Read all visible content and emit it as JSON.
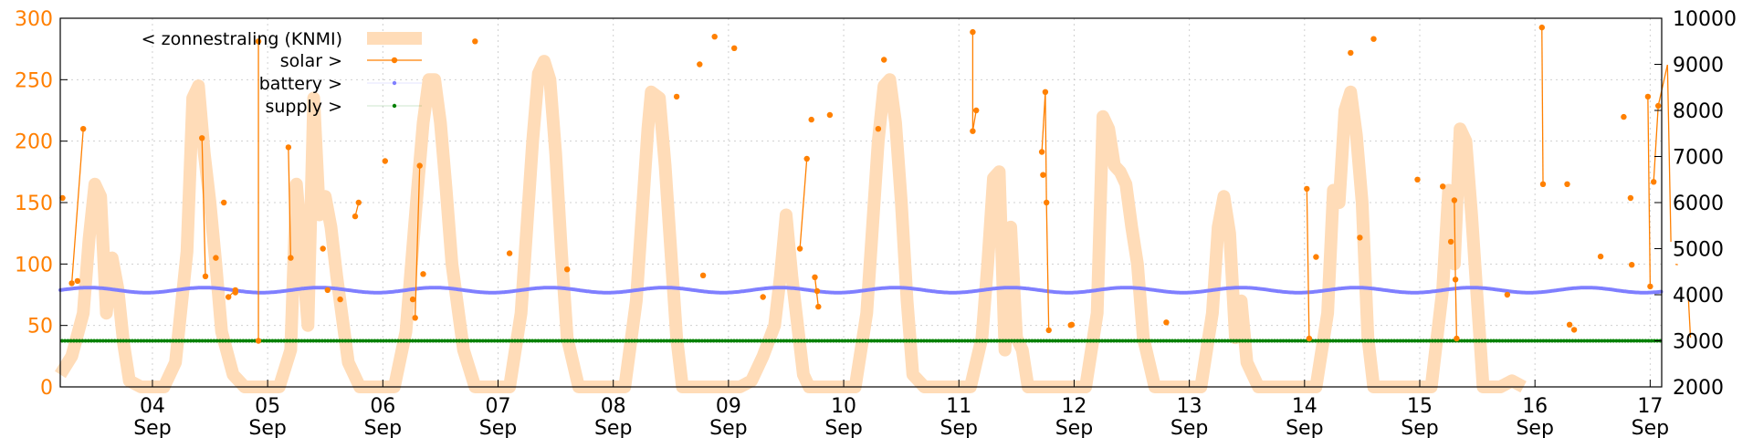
{
  "chart_data": {
    "type": "line",
    "title": "",
    "xlabel": "",
    "ylabel": "",
    "colors": {
      "zonnestraling": "#ffdcb8",
      "solar": "#ff8000",
      "battery": "#7f7fff",
      "supply": "#008000",
      "left_axis": "#ff7f00",
      "right_axis": "#000000"
    },
    "x_days": [
      "04",
      "05",
      "06",
      "07",
      "08",
      "09",
      "10",
      "11",
      "12",
      "13",
      "14",
      "15",
      "16",
      "17"
    ],
    "x_month": "Sep",
    "xlim": [
      3.2,
      17.1
    ],
    "ylim_left": [
      0,
      300
    ],
    "ylim_right": [
      2000,
      10000
    ],
    "y_ticks_left": [
      "0",
      "50",
      "100",
      "150",
      "200",
      "250",
      "300"
    ],
    "y_ticks_right": [
      "2000",
      "3000",
      "4000",
      "5000",
      "6000",
      "7000",
      "8000",
      "9000",
      "10000"
    ],
    "grid": true,
    "legend_position": "top-left",
    "legend": [
      {
        "key": "zonnestraling",
        "label": "< zonnestraling (KNMI)"
      },
      {
        "key": "solar",
        "label": "solar >"
      },
      {
        "key": "battery",
        "label": "battery >"
      },
      {
        "key": "supply",
        "label": "supply >"
      }
    ],
    "series": [
      {
        "name": "< zonnestraling (KNMI)",
        "axis": "left",
        "style": "thick-line",
        "points": [
          [
            3.2,
            10
          ],
          [
            3.3,
            25
          ],
          [
            3.4,
            60
          ],
          [
            3.45,
            120
          ],
          [
            3.5,
            165
          ],
          [
            3.55,
            155
          ],
          [
            3.6,
            60
          ],
          [
            3.65,
            105
          ],
          [
            3.7,
            80
          ],
          [
            3.75,
            35
          ],
          [
            3.8,
            5
          ],
          [
            3.9,
            0
          ],
          [
            4.1,
            0
          ],
          [
            4.2,
            20
          ],
          [
            4.3,
            110
          ],
          [
            4.35,
            235
          ],
          [
            4.4,
            245
          ],
          [
            4.45,
            190
          ],
          [
            4.5,
            150
          ],
          [
            4.55,
            100
          ],
          [
            4.6,
            45
          ],
          [
            4.7,
            10
          ],
          [
            4.8,
            0
          ],
          [
            5.1,
            0
          ],
          [
            5.2,
            30
          ],
          [
            5.25,
            165
          ],
          [
            5.3,
            110
          ],
          [
            5.35,
            50
          ],
          [
            5.4,
            235
          ],
          [
            5.45,
            140
          ],
          [
            5.5,
            155
          ],
          [
            5.55,
            130
          ],
          [
            5.6,
            90
          ],
          [
            5.7,
            20
          ],
          [
            5.8,
            0
          ],
          [
            6.1,
            0
          ],
          [
            6.2,
            45
          ],
          [
            6.3,
            160
          ],
          [
            6.35,
            215
          ],
          [
            6.4,
            250
          ],
          [
            6.45,
            250
          ],
          [
            6.5,
            215
          ],
          [
            6.55,
            160
          ],
          [
            6.6,
            100
          ],
          [
            6.7,
            30
          ],
          [
            6.8,
            0
          ],
          [
            7.1,
            0
          ],
          [
            7.2,
            60
          ],
          [
            7.3,
            200
          ],
          [
            7.35,
            255
          ],
          [
            7.4,
            265
          ],
          [
            7.45,
            250
          ],
          [
            7.5,
            190
          ],
          [
            7.55,
            110
          ],
          [
            7.6,
            40
          ],
          [
            7.7,
            0
          ],
          [
            8.1,
            0
          ],
          [
            8.2,
            70
          ],
          [
            8.3,
            210
          ],
          [
            8.33,
            240
          ],
          [
            8.4,
            235
          ],
          [
            8.45,
            180
          ],
          [
            8.5,
            110
          ],
          [
            8.55,
            40
          ],
          [
            8.6,
            0
          ],
          [
            9.1,
            0
          ],
          [
            9.2,
            5
          ],
          [
            9.3,
            25
          ],
          [
            9.4,
            50
          ],
          [
            9.45,
            90
          ],
          [
            9.5,
            140
          ],
          [
            9.55,
            90
          ],
          [
            9.6,
            50
          ],
          [
            9.65,
            10
          ],
          [
            9.7,
            0
          ],
          [
            10.1,
            0
          ],
          [
            10.2,
            60
          ],
          [
            10.3,
            200
          ],
          [
            10.35,
            245
          ],
          [
            10.4,
            250
          ],
          [
            10.45,
            215
          ],
          [
            10.5,
            150
          ],
          [
            10.55,
            70
          ],
          [
            10.6,
            10
          ],
          [
            10.7,
            0
          ],
          [
            11.1,
            0
          ],
          [
            11.2,
            40
          ],
          [
            11.25,
            100
          ],
          [
            11.3,
            170
          ],
          [
            11.35,
            175
          ],
          [
            11.4,
            30
          ],
          [
            11.45,
            130
          ],
          [
            11.5,
            40
          ],
          [
            11.55,
            30
          ],
          [
            11.6,
            0
          ],
          [
            12.1,
            0
          ],
          [
            12.2,
            60
          ],
          [
            12.25,
            220
          ],
          [
            12.3,
            210
          ],
          [
            12.35,
            180
          ],
          [
            12.4,
            175
          ],
          [
            12.45,
            165
          ],
          [
            12.5,
            130
          ],
          [
            12.55,
            100
          ],
          [
            12.6,
            40
          ],
          [
            12.7,
            0
          ],
          [
            13.1,
            0
          ],
          [
            13.2,
            60
          ],
          [
            13.25,
            130
          ],
          [
            13.3,
            155
          ],
          [
            13.35,
            125
          ],
          [
            13.4,
            40
          ],
          [
            13.45,
            70
          ],
          [
            13.5,
            20
          ],
          [
            13.6,
            0
          ],
          [
            14.1,
            0
          ],
          [
            14.2,
            60
          ],
          [
            14.25,
            160
          ],
          [
            14.3,
            150
          ],
          [
            14.35,
            225
          ],
          [
            14.4,
            240
          ],
          [
            14.45,
            205
          ],
          [
            14.5,
            150
          ],
          [
            14.55,
            40
          ],
          [
            14.6,
            0
          ],
          [
            15.1,
            0
          ],
          [
            15.2,
            80
          ],
          [
            15.25,
            160
          ],
          [
            15.3,
            100
          ],
          [
            15.35,
            210
          ],
          [
            15.4,
            200
          ],
          [
            15.45,
            140
          ],
          [
            15.5,
            70
          ],
          [
            15.55,
            0
          ],
          [
            15.7,
            0
          ],
          [
            15.8,
            5
          ],
          [
            15.9,
            0
          ]
        ]
      },
      {
        "name": "solar >",
        "axis": "right",
        "style": "points",
        "points": [
          [
            3.22,
            6100
          ],
          [
            3.3,
            4250
          ],
          [
            3.35,
            4300
          ],
          [
            3.4,
            7600
          ],
          [
            4.43,
            7400
          ],
          [
            4.46,
            4400
          ],
          [
            4.55,
            4800
          ],
          [
            4.62,
            6000
          ],
          [
            4.66,
            3950
          ],
          [
            4.72,
            4050
          ],
          [
            4.72,
            4100
          ],
          [
            4.92,
            9500
          ],
          [
            4.92,
            3000
          ],
          [
            5.18,
            7200
          ],
          [
            5.2,
            4800
          ],
          [
            5.48,
            5000
          ],
          [
            5.52,
            4100
          ],
          [
            5.63,
            3900
          ],
          [
            5.76,
            5700
          ],
          [
            5.79,
            6000
          ],
          [
            6.02,
            6900
          ],
          [
            6.26,
            3900
          ],
          [
            6.28,
            3500
          ],
          [
            6.32,
            6800
          ],
          [
            6.35,
            4450
          ],
          [
            6.8,
            9500
          ],
          [
            7.1,
            4900
          ],
          [
            7.6,
            4550
          ],
          [
            8.55,
            8300
          ],
          [
            8.75,
            9000
          ],
          [
            8.78,
            4420
          ],
          [
            8.88,
            9600
          ],
          [
            9.05,
            9350
          ],
          [
            9.3,
            3950
          ],
          [
            9.62,
            5000
          ],
          [
            9.68,
            6950
          ],
          [
            9.72,
            7800
          ],
          [
            9.75,
            4380
          ],
          [
            9.77,
            4080
          ],
          [
            9.78,
            3740
          ],
          [
            9.88,
            7900
          ],
          [
            10.3,
            7600
          ],
          [
            10.35,
            9100
          ],
          [
            11.12,
            9700
          ],
          [
            11.12,
            7550
          ],
          [
            11.15,
            8000
          ],
          [
            11.72,
            7100
          ],
          [
            11.73,
            6600
          ],
          [
            11.75,
            8400
          ],
          [
            11.76,
            6000
          ],
          [
            11.78,
            3230
          ],
          [
            11.97,
            3340
          ],
          [
            11.98,
            3350
          ],
          [
            12.8,
            3400
          ],
          [
            14.02,
            6300
          ],
          [
            14.04,
            3050
          ],
          [
            14.1,
            4820
          ],
          [
            14.4,
            9250
          ],
          [
            14.48,
            5240
          ],
          [
            14.6,
            9550
          ],
          [
            14.98,
            6500
          ],
          [
            15.2,
            6350
          ],
          [
            15.27,
            5150
          ],
          [
            15.3,
            6050
          ],
          [
            15.31,
            4330
          ],
          [
            15.32,
            3050
          ],
          [
            15.76,
            4000
          ],
          [
            16.06,
            9800
          ],
          [
            16.07,
            6400
          ],
          [
            16.28,
            6400
          ],
          [
            16.3,
            3350
          ],
          [
            16.34,
            3240
          ],
          [
            16.57,
            4830
          ],
          [
            16.77,
            7860
          ],
          [
            16.83,
            6100
          ],
          [
            16.84,
            4650
          ],
          [
            16.98,
            8300
          ],
          [
            17.0,
            4180
          ],
          [
            17.03,
            6450
          ],
          [
            17.07,
            8100
          ],
          [
            17.15,
            8990
          ],
          [
            17.18,
            5150
          ],
          [
            17.2,
            5050
          ],
          [
            17.22,
            4660
          ],
          [
            17.24,
            4650
          ],
          [
            17.33,
            4000
          ],
          [
            17.35,
            3070
          ]
        ],
        "links": [
          [
            3.3,
            4250,
            3.4,
            7600
          ],
          [
            4.43,
            7400,
            4.46,
            4400
          ],
          [
            4.66,
            3950,
            4.72,
            4100
          ],
          [
            4.92,
            3000,
            4.92,
            9500
          ],
          [
            5.18,
            7200,
            5.2,
            4800
          ],
          [
            5.76,
            5700,
            5.79,
            6000
          ],
          [
            6.28,
            3500,
            6.32,
            6800
          ],
          [
            9.62,
            5000,
            9.68,
            6950
          ],
          [
            9.75,
            4380,
            9.78,
            3740
          ],
          [
            11.12,
            9700,
            11.12,
            7550
          ],
          [
            11.12,
            7550,
            11.15,
            8000
          ],
          [
            11.72,
            7100,
            11.75,
            8400
          ],
          [
            11.75,
            8400,
            11.76,
            6000
          ],
          [
            11.76,
            6000,
            11.78,
            3230
          ],
          [
            14.02,
            6300,
            14.04,
            3050
          ],
          [
            15.3,
            6050,
            15.31,
            4330
          ],
          [
            15.31,
            4330,
            15.32,
            3050
          ],
          [
            16.06,
            9800,
            16.07,
            6400
          ],
          [
            16.98,
            8300,
            17.0,
            4180
          ],
          [
            17.03,
            6450,
            17.07,
            8100
          ],
          [
            17.07,
            8100,
            17.15,
            8990
          ],
          [
            17.15,
            8990,
            17.18,
            5150
          ],
          [
            17.22,
            4660,
            17.24,
            4650
          ],
          [
            17.33,
            4000,
            17.35,
            3070
          ]
        ]
      },
      {
        "name": "battery >",
        "axis": "right",
        "style": "small-points",
        "baseline": 4100,
        "amplitude": 55,
        "period_days": 1
      },
      {
        "name": "supply >",
        "axis": "right",
        "style": "small-points",
        "constant": 3000
      }
    ]
  }
}
